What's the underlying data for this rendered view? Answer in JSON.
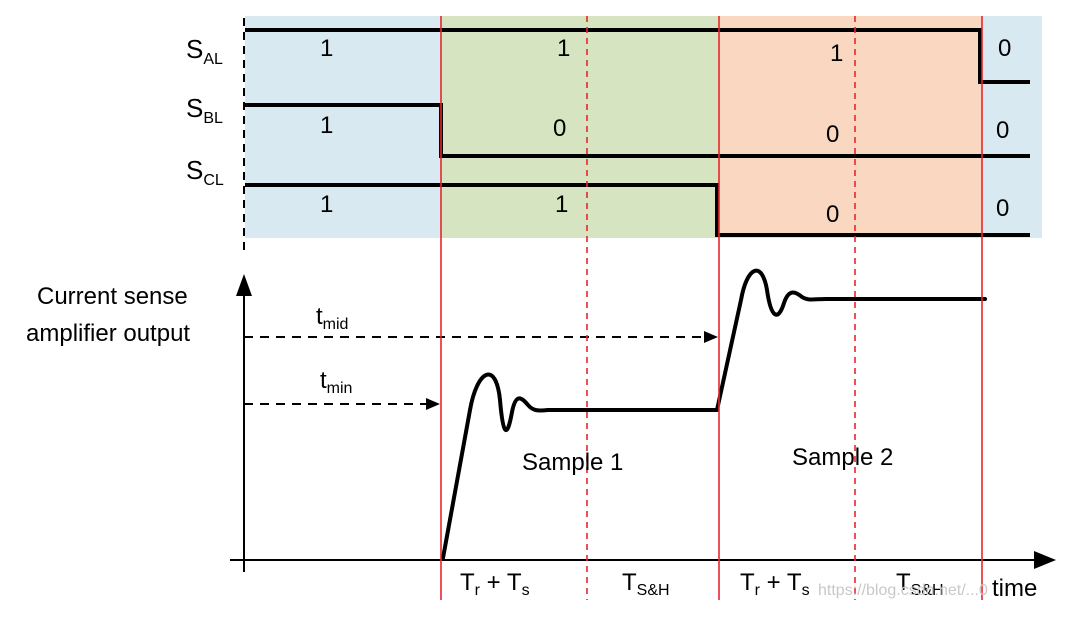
{
  "signals": [
    {
      "main": "S",
      "sub": "AL",
      "values": [
        "1",
        "1",
        "1",
        "0"
      ]
    },
    {
      "main": "S",
      "sub": "BL",
      "values": [
        "1",
        "0",
        "0",
        "0"
      ]
    },
    {
      "main": "S",
      "sub": "CL",
      "values": [
        "1",
        "1",
        "0",
        "0"
      ]
    }
  ],
  "colors": {
    "blue_region": "#d8e9f1",
    "green_region": "#d6e4c1",
    "orange_region": "#f9d7c0",
    "red_line": "#e8262d"
  },
  "y_axis_label": [
    "Current sense",
    "amplifier output"
  ],
  "x_axis_label": "time",
  "t_mid": {
    "main": "t",
    "sub": "mid"
  },
  "t_min": {
    "main": "t",
    "sub": "min"
  },
  "samples": [
    "Sample 1",
    "Sample 2"
  ],
  "phases": [
    {
      "main": "T",
      "sub": "r",
      "mid": " + T",
      "sub2": "s"
    },
    {
      "main": "T",
      "sub": "S&H",
      "mid": "",
      "sub2": ""
    },
    {
      "main": "T",
      "sub": "r",
      "mid": " + T",
      "sub2": "s"
    },
    {
      "main": "T",
      "sub": "S&H",
      "mid": "",
      "sub2": ""
    }
  ],
  "watermark": "https://blog.csdn.net/...0"
}
